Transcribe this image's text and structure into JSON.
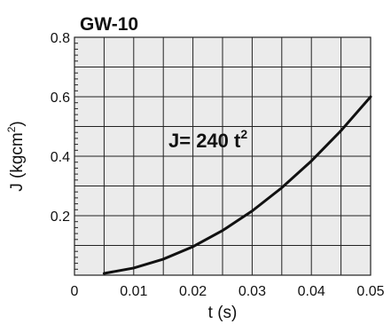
{
  "chart_data": {
    "type": "line",
    "title": "GW-10",
    "xlabel": "t (s)",
    "ylabel_main": "J (kgcm",
    "ylabel_sup": "2",
    "ylabel_close": ")",
    "annotation_main": "J= 240 t",
    "annotation_sup": "2",
    "xlim": [
      0,
      0.05
    ],
    "ylim": [
      0,
      0.8
    ],
    "xticks": [
      {
        "value": 0,
        "label": "0"
      },
      {
        "value": 0.01,
        "label": "0.01"
      },
      {
        "value": 0.02,
        "label": "0.02"
      },
      {
        "value": 0.03,
        "label": "0.03"
      },
      {
        "value": 0.04,
        "label": "0.04"
      },
      {
        "value": 0.05,
        "label": "0.05"
      }
    ],
    "yticks": [
      {
        "value": 0.2,
        "label": "0.2"
      },
      {
        "value": 0.4,
        "label": "0.4"
      },
      {
        "value": 0.6,
        "label": "0.6"
      },
      {
        "value": 0.8,
        "label": "0.8"
      }
    ],
    "grid": true,
    "background": "#ebebeb",
    "line_color": "#111111",
    "series": [
      {
        "x": [
          0.005,
          0.01,
          0.015,
          0.02,
          0.025,
          0.03,
          0.035,
          0.04,
          0.045,
          0.05
        ],
        "y": [
          0.006,
          0.024,
          0.054,
          0.096,
          0.15,
          0.216,
          0.294,
          0.384,
          0.486,
          0.6
        ]
      }
    ]
  }
}
